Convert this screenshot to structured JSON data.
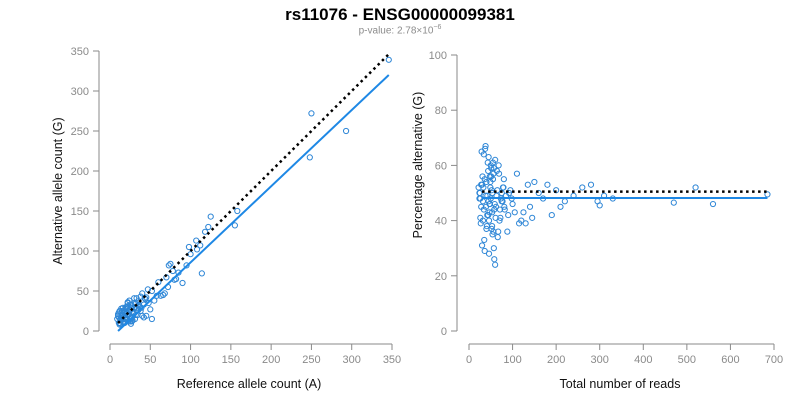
{
  "title": "rs11076 - ENSG00000099381",
  "subtitle": {
    "prefix": "p-value: 2.78×10",
    "exponent": "−6"
  },
  "colors": {
    "points": "#2e86d6",
    "fit_line": "#1e88e5",
    "reference_line": "#000000",
    "axis": "#8a8a8a"
  },
  "chart_data": [
    {
      "type": "scatter",
      "xlabel": "Reference allele count (A)",
      "ylabel": "Alternative allele count (G)",
      "xlim": [
        0,
        350
      ],
      "ylim": [
        0,
        350
      ],
      "xticks": [
        0,
        50,
        100,
        150,
        200,
        250,
        300,
        350
      ],
      "yticks": [
        0,
        50,
        100,
        150,
        200,
        250,
        300,
        350
      ],
      "grid": false,
      "x": [
        346,
        293,
        250,
        248,
        158,
        155,
        125,
        122,
        118,
        114,
        112,
        108,
        107,
        100,
        98,
        95,
        90,
        85,
        82,
        80,
        78,
        75,
        73,
        72,
        70,
        68,
        66,
        63,
        60,
        58,
        55,
        52,
        50,
        48,
        45,
        43,
        42,
        40,
        38,
        36,
        35,
        33,
        32,
        31,
        30,
        29,
        28,
        27,
        26,
        25,
        24,
        23,
        22,
        21,
        20,
        19,
        18,
        17,
        16,
        15,
        14,
        13,
        12,
        11,
        10,
        30,
        28,
        26,
        24,
        22,
        20,
        18,
        16,
        14,
        12,
        34,
        32,
        27,
        25,
        23,
        21,
        19,
        17,
        15,
        13,
        11,
        40,
        37,
        35,
        31,
        29,
        26,
        22,
        18,
        15,
        12,
        10,
        45,
        42,
        38,
        33,
        28,
        25,
        20,
        17,
        14,
        52,
        47,
        44,
        39,
        36,
        30,
        27,
        24,
        21,
        19,
        16,
        13,
        11,
        9
      ],
      "y": [
        339,
        250,
        272,
        217,
        150,
        132,
        143,
        130,
        124,
        72,
        107,
        102,
        113,
        96,
        105,
        82,
        60,
        73,
        65,
        64,
        75,
        84,
        82,
        55,
        67,
        47,
        45,
        44,
        61,
        44,
        38,
        50,
        27,
        35,
        42,
        41,
        17,
        47,
        25,
        32,
        37,
        41,
        20,
        35,
        22,
        23,
        31,
        17,
        29,
        33,
        38,
        12,
        36,
        30,
        30,
        17,
        24,
        12,
        29,
        25,
        28,
        15,
        8,
        23,
        19,
        28,
        22,
        17,
        26,
        31,
        14,
        10,
        21,
        18,
        25,
        20,
        34,
        16,
        12,
        20,
        27,
        11,
        24,
        14,
        9,
        17,
        19,
        30,
        26,
        15,
        24,
        9,
        35,
        15,
        20,
        10,
        21,
        19,
        33,
        43,
        29,
        13,
        27,
        16,
        12,
        22,
        15,
        52,
        40,
        29,
        33,
        41,
        12,
        18,
        23,
        28,
        17,
        13,
        10,
        15
      ],
      "fit_line": {
        "x": [
          10,
          346
        ],
        "y": [
          0,
          320
        ]
      },
      "reference_line": {
        "x": [
          10,
          346
        ],
        "y": [
          10,
          346
        ]
      }
    },
    {
      "type": "scatter",
      "xlabel": "Total number of reads",
      "ylabel": "Percentage alternative (G)",
      "xlim": [
        0,
        700
      ],
      "ylim": [
        0,
        100
      ],
      "xticks": [
        0,
        100,
        200,
        300,
        400,
        500,
        600,
        700
      ],
      "yticks": [
        0,
        20,
        40,
        60,
        80,
        100
      ],
      "grid": false,
      "x": [
        685,
        560,
        520,
        470,
        330,
        310,
        300,
        295,
        280,
        260,
        240,
        220,
        210,
        200,
        190,
        180,
        170,
        160,
        150,
        145,
        140,
        135,
        130,
        125,
        120,
        115,
        110,
        105,
        100,
        98,
        95,
        92,
        90,
        88,
        85,
        82,
        80,
        78,
        75,
        72,
        70,
        68,
        66,
        64,
        62,
        60,
        58,
        57,
        56,
        55,
        54,
        53,
        52,
        51,
        50,
        49,
        48,
        47,
        46,
        45,
        44,
        43,
        42,
        41,
        40,
        39,
        38,
        37,
        36,
        35,
        34,
        33,
        32,
        31,
        30,
        29,
        28,
        27,
        26,
        25,
        24,
        60,
        58,
        56,
        54,
        52,
        50,
        48,
        46,
        44,
        42,
        40,
        38,
        36,
        34,
        32,
        30,
        28,
        26,
        24,
        22,
        45,
        47,
        49,
        51,
        53,
        55,
        57,
        59,
        61,
        63,
        65,
        67,
        69,
        71,
        73,
        75,
        77,
        79,
        81
      ],
      "y": [
        49.5,
        46,
        52,
        46.5,
        48,
        49,
        45.5,
        47,
        53,
        52,
        49,
        47,
        45,
        51,
        42,
        53,
        48,
        50,
        54,
        41,
        45,
        53,
        39,
        43,
        40,
        39,
        57,
        43,
        46,
        48,
        51,
        50,
        42,
        36,
        49,
        44,
        55,
        52,
        47,
        41,
        40,
        60,
        34,
        58,
        45,
        24,
        26,
        30,
        36,
        55,
        50,
        43,
        37,
        59,
        48,
        52,
        56,
        46,
        40,
        63,
        42,
        61,
        49,
        38,
        54,
        45,
        67,
        66,
        29,
        33,
        44,
        52,
        47,
        56,
        31,
        65,
        53,
        39,
        41,
        50,
        48,
        62,
        44,
        57,
        35,
        51,
        60,
        46,
        28,
        58,
        42,
        37,
        49,
        55,
        64,
        40,
        53,
        45,
        48,
        50,
        52,
        47,
        43,
        54,
        56,
        38,
        61,
        59,
        46,
        41,
        49,
        51,
        36,
        57,
        44,
        48,
        50,
        47,
        52,
        45
      ],
      "fit_line": {
        "x": [
          30,
          685
        ],
        "y": [
          48.2,
          48.2
        ]
      },
      "reference_line": {
        "x": [
          30,
          685
        ],
        "y": [
          50.5,
          50.5
        ]
      }
    }
  ]
}
